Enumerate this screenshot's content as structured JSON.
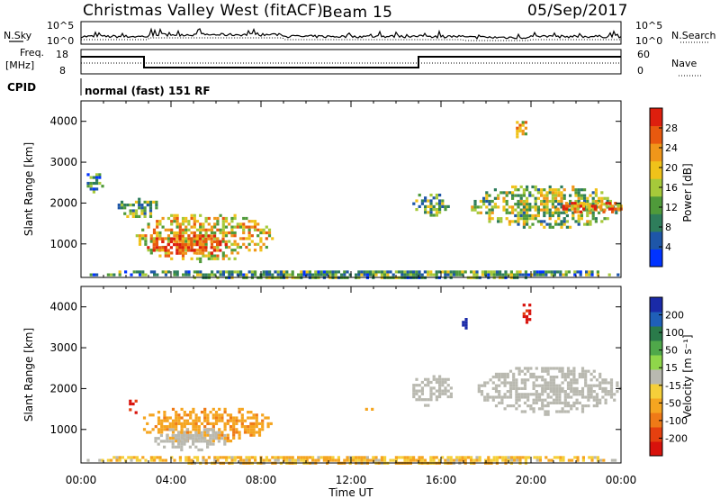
{
  "header": {
    "station": "Christmas Valley West (fitACF)",
    "beam": "Beam 15",
    "date": "05/Sep/2017"
  },
  "strip_labels": {
    "nsky": "N.Sky",
    "nsearch": "N.Search",
    "freq": "Freq.",
    "freq_unit": "[MHz]",
    "nave": "Nave",
    "cpid": "CPID",
    "cpid_value": "normal (fast) 151 RF",
    "noise_ticks": [
      "10^5",
      "10^0"
    ],
    "freq_ticks": [
      "18",
      "8"
    ],
    "nave_ticks": [
      "60",
      "0"
    ]
  },
  "axes": {
    "xlabel": "Time UT",
    "x_ticks": [
      "00:00",
      "04:00",
      "08:00",
      "12:00",
      "16:00",
      "20:00",
      "00:00"
    ],
    "ylabel": "Slant Range [km]",
    "y_ticks": [
      "1000",
      "2000",
      "3000",
      "4000"
    ]
  },
  "colorbars": {
    "power": {
      "label": "Power [dB]",
      "ticks": [
        "4",
        "8",
        "12",
        "16",
        "20",
        "24",
        "28"
      ],
      "colors": [
        "#0033ff",
        "#1e56a8",
        "#2e7d5b",
        "#4f9a3a",
        "#a6c93a",
        "#f0c21a",
        "#f0961a",
        "#e8590f",
        "#dd1f0e"
      ]
    },
    "velocity": {
      "label": "Velocity [m s⁻¹]",
      "ticks": [
        "200",
        "100",
        "50",
        "15",
        "-15",
        "-50",
        "-100",
        "-200"
      ],
      "colors": [
        "#1a2aa8",
        "#1f5fb8",
        "#2a7a4a",
        "#4fa84a",
        "#8fd64a",
        "#b9b9b0",
        "#f5cf3a",
        "#f5a520",
        "#ef7a17",
        "#e5400f",
        "#d8120c"
      ]
    }
  },
  "chart_data": [
    {
      "type": "heatmap",
      "name": "Power",
      "xlabel": "Time UT",
      "ylabel": "Slant Range [km]",
      "xlim": [
        "00:00",
        "24:00"
      ],
      "ylim": [
        180,
        4500
      ],
      "colorbar": {
        "label": "Power [dB]",
        "range": [
          0,
          30
        ]
      },
      "regions": [
        {
          "t": [
            0.0,
            1.0
          ],
          "r": [
            2300,
            2800
          ],
          "value": 8
        },
        {
          "t": [
            1.5,
            3.5
          ],
          "r": [
            1650,
            2200
          ],
          "value": 12
        },
        {
          "t": [
            2.3,
            8.5
          ],
          "r": [
            600,
            1800
          ],
          "value": 18
        },
        {
          "t": [
            2.8,
            6.5
          ],
          "r": [
            750,
            1300
          ],
          "value": 26
        },
        {
          "t": [
            14.6,
            16.3
          ],
          "r": [
            1700,
            2300
          ],
          "value": 12
        },
        {
          "t": [
            17.2,
            24.0
          ],
          "r": [
            1400,
            2500
          ],
          "value": 14
        },
        {
          "t": [
            21.0,
            24.0
          ],
          "r": [
            1750,
            2100
          ],
          "value": 24
        },
        {
          "t": [
            19.2,
            19.8
          ],
          "r": [
            3600,
            4150
          ],
          "value": 18
        },
        {
          "t": [
            0.0,
            24.0
          ],
          "r": [
            180,
            420
          ],
          "value": 10
        }
      ]
    },
    {
      "type": "heatmap",
      "name": "Velocity",
      "xlabel": "Time UT",
      "ylabel": "Slant Range [km]",
      "xlim": [
        "00:00",
        "24:00"
      ],
      "ylim": [
        180,
        4500
      ],
      "colorbar": {
        "label": "Velocity [m s⁻¹]",
        "range": [
          -200,
          200
        ]
      },
      "regions": [
        {
          "t": [
            2.5,
            8.5
          ],
          "r": [
            700,
            1600
          ],
          "value": -60
        },
        {
          "t": [
            3.0,
            6.5
          ],
          "r": [
            500,
            1100
          ],
          "value": 0
        },
        {
          "t": [
            2.0,
            2.5
          ],
          "r": [
            1400,
            1800
          ],
          "value": -180
        },
        {
          "t": [
            12.5,
            13.0
          ],
          "r": [
            1450,
            1600
          ],
          "value": -60
        },
        {
          "t": [
            14.6,
            16.5
          ],
          "r": [
            1600,
            2400
          ],
          "value": 0
        },
        {
          "t": [
            17.5,
            24.0
          ],
          "r": [
            1400,
            2600
          ],
          "value": 0
        },
        {
          "t": [
            19.5,
            20.0
          ],
          "r": [
            3600,
            4150
          ],
          "value": -180
        },
        {
          "t": [
            16.8,
            17.3
          ],
          "r": [
            3500,
            3800
          ],
          "value": 180
        },
        {
          "t": [
            0.0,
            24.0
          ],
          "r": [
            180,
            420
          ],
          "value": -30
        }
      ]
    }
  ]
}
